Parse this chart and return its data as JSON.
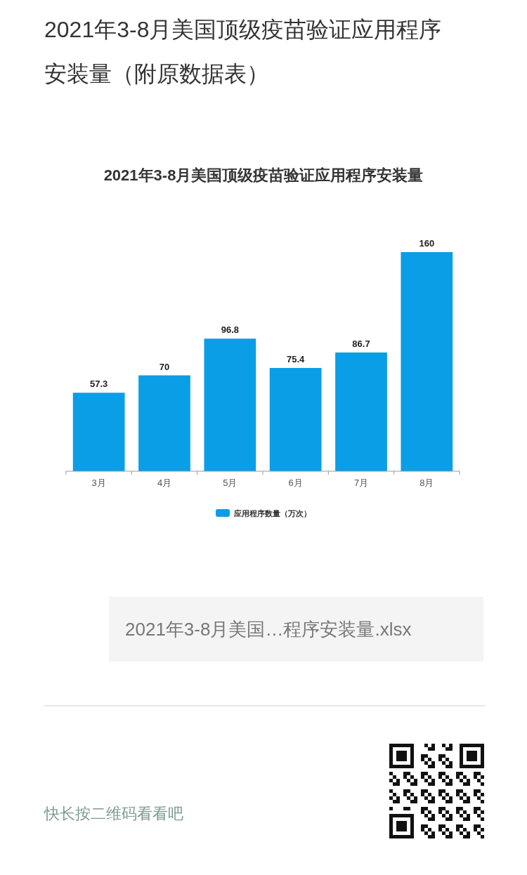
{
  "chart_data": {
    "type": "bar",
    "title": "2021年3-8月美国顶级疫苗验证应用程序安装量",
    "categories": [
      "3月",
      "4月",
      "5月",
      "6月",
      "7月",
      "8月"
    ],
    "series": [
      {
        "name": "应用程序数量（万次）",
        "color": "#0a9ee6",
        "values": [
          57.3,
          70,
          96.8,
          75.4,
          86.7,
          160
        ]
      }
    ],
    "data_labels": true,
    "legend": "bottom",
    "tick_labels": "x",
    "annotations": [
      "2021年3-8月美国顶级疫苗验证应用程序安装量（附原数据表）",
      "2021年3-8月美国…程序安装量.xlsx",
      "快长按二维码看看吧"
    ]
  }
}
